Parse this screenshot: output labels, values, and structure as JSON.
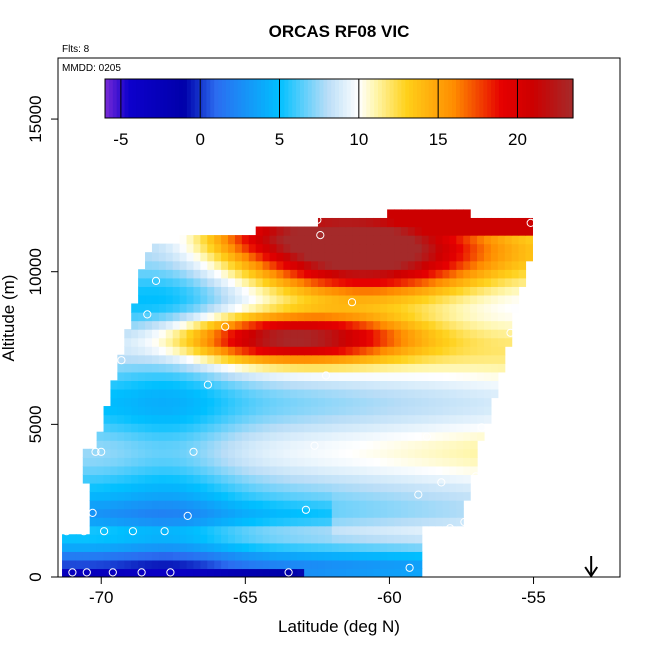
{
  "chart_data": {
    "type": "heatmap",
    "title": "ORCAS RF08 VIC",
    "annotations": {
      "flights": "Flts: 8",
      "date": "MMDD: 0205"
    },
    "xlabel": "Latitude (deg N)",
    "ylabel": "Altitude (m)",
    "xlim": [
      -71.5,
      -52.0
    ],
    "ylim": [
      0,
      17000
    ],
    "x_ticks": [
      -70,
      -65,
      -60,
      -55
    ],
    "x_tick_labels": [
      "-70",
      "-65",
      "-60",
      "-55"
    ],
    "y_ticks": [
      0,
      5000,
      10000,
      15000
    ],
    "y_tick_labels": [
      "0",
      "5000",
      "10000",
      "15000"
    ],
    "colorbar": {
      "range": [
        -6,
        23.5
      ],
      "ticks": [
        -5,
        0,
        5,
        10,
        15,
        20
      ],
      "tick_labels": [
        "-5",
        "0",
        "5",
        "10",
        "15",
        "20"
      ],
      "stops": [
        {
          "v": -6,
          "c": "#7a2bd6"
        },
        {
          "v": -4.5,
          "c": "#0d00cc"
        },
        {
          "v": -1,
          "c": "#0000aa"
        },
        {
          "v": 1,
          "c": "#2b6cf0"
        },
        {
          "v": 5,
          "c": "#00c0ff"
        },
        {
          "v": 8,
          "c": "#b8ddf7"
        },
        {
          "v": 10,
          "c": "#ffffff"
        },
        {
          "v": 11,
          "c": "#fff7b0"
        },
        {
          "v": 13,
          "c": "#ffd11a"
        },
        {
          "v": 16,
          "c": "#ff8c00"
        },
        {
          "v": 19,
          "c": "#e60000"
        },
        {
          "v": 21,
          "c": "#cc0000"
        },
        {
          "v": 23.5,
          "c": "#a52a2a"
        }
      ]
    },
    "track_points": [
      [
        -71.2,
        1500
      ],
      [
        -71.0,
        150
      ],
      [
        -70.8,
        1900
      ],
      [
        -70.6,
        1500
      ],
      [
        -70.5,
        150
      ],
      [
        -70.3,
        2100
      ],
      [
        -70.2,
        4100
      ],
      [
        -70.0,
        4100
      ],
      [
        -69.9,
        1500
      ],
      [
        -69.6,
        150
      ],
      [
        -69.3,
        7100
      ],
      [
        -68.9,
        1500
      ],
      [
        -68.6,
        150
      ],
      [
        -68.4,
        8600
      ],
      [
        -68.1,
        9700
      ],
      [
        -67.8,
        1500
      ],
      [
        -67.6,
        150
      ],
      [
        -67.0,
        2000
      ],
      [
        -66.8,
        4100
      ],
      [
        -66.3,
        6300
      ],
      [
        -65.7,
        8200
      ],
      [
        -63.5,
        150
      ],
      [
        -62.9,
        2200
      ],
      [
        -62.6,
        4300
      ],
      [
        -62.2,
        6600
      ],
      [
        -62.4,
        11200
      ],
      [
        -61.3,
        9000
      ],
      [
        -59.3,
        300
      ],
      [
        -59.0,
        2700
      ],
      [
        -58.7,
        4600
      ],
      [
        -58.2,
        3100
      ],
      [
        -57.9,
        1600
      ],
      [
        -57.9,
        12200
      ],
      [
        -57.4,
        1800
      ],
      [
        -57.2,
        300
      ],
      [
        -57.0,
        3300
      ],
      [
        -56.8,
        4900
      ],
      [
        -55.8,
        8000
      ],
      [
        -55.1,
        11600
      ],
      [
        -62.5,
        11700
      ]
    ],
    "arrow_latitude": -53.0,
    "grid": false,
    "legend": "colorbar top"
  }
}
